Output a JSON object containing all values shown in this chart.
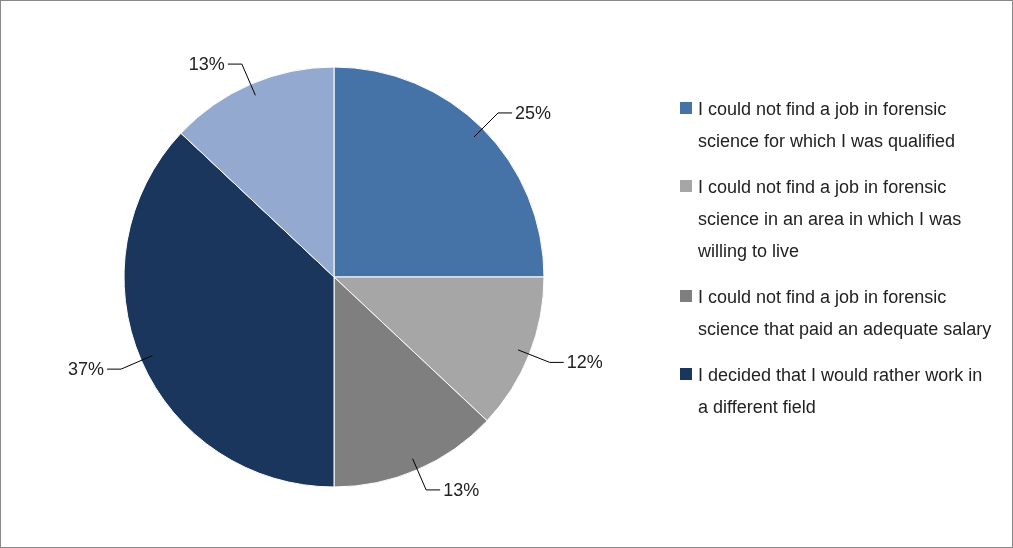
{
  "chart_data": {
    "type": "pie",
    "categories": [
      "I could not find a job in forensic science for which I was qualified",
      "I could not find a job in forensic science in an area in which I was willing to live",
      "I could not find a job in forensic science that paid an adequate salary",
      " I decided that I would rather work in a different field",
      null
    ],
    "values": [
      25,
      12,
      13,
      37,
      13
    ],
    "colors": [
      "#4572a7",
      "#a6a6a6",
      "#7f7f7f",
      "#1b365d",
      "#94a9d0"
    ],
    "value_labels": [
      "25%",
      "12%",
      "13%",
      "37%",
      "13%"
    ],
    "legend": "right"
  }
}
